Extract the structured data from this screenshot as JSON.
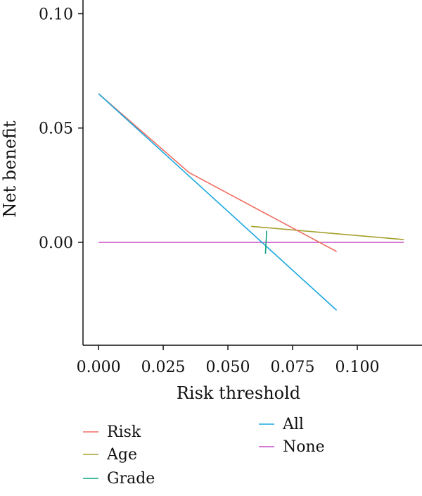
{
  "chart_data": {
    "type": "line",
    "title": "",
    "xlabel": "Risk threshold",
    "ylabel": "Net benefit",
    "xlim": [
      -0.006,
      0.125
    ],
    "ylim": [
      -0.045,
      0.106
    ],
    "x_ticks": [
      0.0,
      0.025,
      0.05,
      0.075,
      0.1
    ],
    "x_tick_labels": [
      "0.000",
      "0.025",
      "0.050",
      "0.075",
      "0.100"
    ],
    "y_ticks": [
      0.0,
      0.05,
      0.1
    ],
    "y_tick_labels": [
      "0.00",
      "0.05",
      "0.10"
    ],
    "grid": false,
    "legend_position": "bottom",
    "series": [
      {
        "name": "Risk",
        "color": "#ef6f62",
        "points": [
          [
            0.0,
            0.065
          ],
          [
            0.035,
            0.0305
          ],
          [
            0.092,
            -0.004
          ]
        ]
      },
      {
        "name": "Age",
        "color": "#a5a02c",
        "points": [
          [
            0.059,
            0.007
          ],
          [
            0.118,
            0.0012
          ]
        ]
      },
      {
        "name": "Grade",
        "color": "#11a37f",
        "points": [
          [
            0.0645,
            -0.005
          ],
          [
            0.065,
            0.005
          ]
        ]
      },
      {
        "name": "All",
        "color": "#1aa8e0",
        "points": [
          [
            0.0,
            0.065
          ],
          [
            0.092,
            -0.0297
          ]
        ]
      },
      {
        "name": "None",
        "color": "#c651c6",
        "points": [
          [
            0.0,
            0.0
          ],
          [
            0.118,
            0.0
          ]
        ]
      }
    ],
    "legend": {
      "left_column": [
        "Risk",
        "Age",
        "Grade"
      ],
      "right_column": [
        "All",
        "None"
      ]
    }
  }
}
